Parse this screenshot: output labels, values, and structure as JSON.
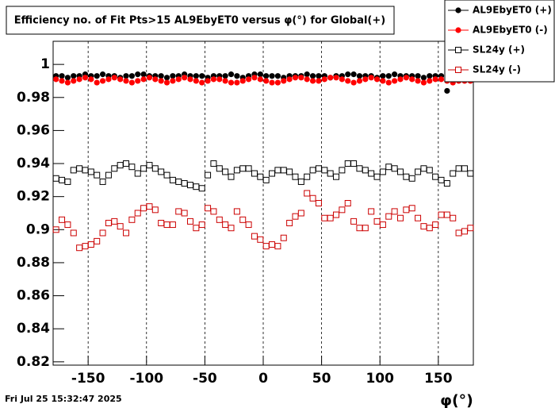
{
  "chart_data": {
    "type": "scatter",
    "title": "Efficiency no. of Fit Pts>15 AL9EbyET0 versus φ(°) for Global(+)",
    "x_label": "φ(°)",
    "footer": "Fri Jul 25 15:32:47 2025",
    "xlim": [
      -180,
      180
    ],
    "ylim": [
      0.818,
      1.014
    ],
    "xticks": [
      -150,
      -100,
      -50,
      0,
      50,
      100,
      150
    ],
    "yticks": [
      0.82,
      0.84,
      0.86,
      0.88,
      0.9,
      0.92,
      0.94,
      0.96,
      0.98,
      1
    ],
    "xgrid": true,
    "legend": "top-right",
    "x": [
      -177.5,
      -172.5,
      -167.5,
      -162.5,
      -157.5,
      -152.5,
      -147.5,
      -142.5,
      -137.5,
      -132.5,
      -127.5,
      -122.5,
      -117.5,
      -112.5,
      -107.5,
      -102.5,
      -97.5,
      -92.5,
      -87.5,
      -82.5,
      -77.5,
      -72.5,
      -67.5,
      -62.5,
      -57.5,
      -52.5,
      -47.5,
      -42.5,
      -37.5,
      -32.5,
      -27.5,
      -22.5,
      -17.5,
      -12.5,
      -7.5,
      -2.5,
      2.5,
      7.5,
      12.5,
      17.5,
      22.5,
      27.5,
      32.5,
      37.5,
      42.5,
      47.5,
      52.5,
      57.5,
      62.5,
      67.5,
      72.5,
      77.5,
      82.5,
      87.5,
      92.5,
      97.5,
      102.5,
      107.5,
      112.5,
      117.5,
      122.5,
      127.5,
      132.5,
      137.5,
      142.5,
      147.5,
      152.5,
      157.5,
      162.5,
      167.5,
      172.5,
      177.5
    ],
    "series": [
      {
        "name": "AL9EbyET0 (+)",
        "color": "#000000",
        "marker": "filled",
        "values": [
          0.993,
          0.993,
          0.992,
          0.993,
          0.993,
          0.994,
          0.993,
          0.993,
          0.994,
          0.993,
          0.993,
          0.992,
          0.993,
          0.993,
          0.994,
          0.994,
          0.993,
          0.993,
          0.993,
          0.992,
          0.993,
          0.993,
          0.994,
          0.993,
          0.993,
          0.993,
          0.992,
          0.993,
          0.993,
          0.993,
          0.994,
          0.993,
          0.992,
          0.993,
          0.994,
          0.994,
          0.993,
          0.993,
          0.993,
          0.992,
          0.993,
          0.993,
          0.993,
          0.994,
          0.993,
          0.993,
          0.993,
          0.992,
          0.993,
          0.993,
          0.994,
          0.994,
          0.993,
          0.993,
          0.993,
          0.992,
          0.993,
          0.993,
          0.994,
          0.993,
          0.993,
          0.993,
          0.993,
          0.992,
          0.993,
          0.993,
          0.993,
          0.984,
          0.991,
          0.993,
          0.992,
          0.993
        ]
      },
      {
        "name": "AL9EbyET0 (-)",
        "color": "#ff0000",
        "marker": "filled",
        "values": [
          0.991,
          0.99,
          0.989,
          0.99,
          0.991,
          0.992,
          0.991,
          0.989,
          0.99,
          0.991,
          0.992,
          0.991,
          0.99,
          0.989,
          0.99,
          0.991,
          0.992,
          0.991,
          0.99,
          0.989,
          0.99,
          0.991,
          0.992,
          0.991,
          0.99,
          0.989,
          0.99,
          0.991,
          0.991,
          0.99,
          0.989,
          0.989,
          0.99,
          0.991,
          0.992,
          0.991,
          0.99,
          0.989,
          0.989,
          0.99,
          0.991,
          0.992,
          0.992,
          0.991,
          0.99,
          0.99,
          0.991,
          0.992,
          0.992,
          0.991,
          0.99,
          0.989,
          0.99,
          0.991,
          0.992,
          0.991,
          0.99,
          0.989,
          0.99,
          0.991,
          0.992,
          0.991,
          0.99,
          0.989,
          0.99,
          0.991,
          0.991,
          0.99,
          0.989,
          0.99,
          0.99,
          0.99
        ]
      },
      {
        "name": "SL24y (+)",
        "color": "#000000",
        "marker": "open",
        "values": [
          0.931,
          0.93,
          0.929,
          0.936,
          0.937,
          0.936,
          0.935,
          0.933,
          0.929,
          0.933,
          0.937,
          0.939,
          0.94,
          0.938,
          0.934,
          0.937,
          0.939,
          0.937,
          0.935,
          0.933,
          0.93,
          0.929,
          0.928,
          0.927,
          0.926,
          0.925,
          0.933,
          0.94,
          0.937,
          0.935,
          0.932,
          0.936,
          0.937,
          0.937,
          0.934,
          0.932,
          0.93,
          0.934,
          0.936,
          0.936,
          0.935,
          0.932,
          0.929,
          0.932,
          0.936,
          0.937,
          0.936,
          0.934,
          0.932,
          0.936,
          0.94,
          0.94,
          0.937,
          0.936,
          0.934,
          0.932,
          0.935,
          0.938,
          0.937,
          0.935,
          0.932,
          0.931,
          0.935,
          0.937,
          0.936,
          0.932,
          0.93,
          0.928,
          0.934,
          0.937,
          0.937,
          0.934
        ]
      },
      {
        "name": "SL24y (-)",
        "color": "#cc0000",
        "marker": "open",
        "values": [
          0.9,
          0.906,
          0.903,
          0.898,
          0.889,
          0.89,
          0.891,
          0.893,
          0.898,
          0.904,
          0.905,
          0.902,
          0.898,
          0.906,
          0.91,
          0.913,
          0.914,
          0.912,
          0.904,
          0.903,
          0.903,
          0.911,
          0.91,
          0.905,
          0.901,
          0.903,
          0.913,
          0.911,
          0.906,
          0.903,
          0.901,
          0.911,
          0.906,
          0.903,
          0.896,
          0.894,
          0.89,
          0.891,
          0.89,
          0.895,
          0.904,
          0.908,
          0.91,
          0.922,
          0.919,
          0.916,
          0.907,
          0.907,
          0.909,
          0.912,
          0.916,
          0.905,
          0.901,
          0.901,
          0.911,
          0.905,
          0.903,
          0.908,
          0.911,
          0.907,
          0.912,
          0.913,
          0.907,
          0.902,
          0.901,
          0.903,
          0.909,
          0.909,
          0.907,
          0.898,
          0.899,
          0.901
        ]
      }
    ]
  }
}
